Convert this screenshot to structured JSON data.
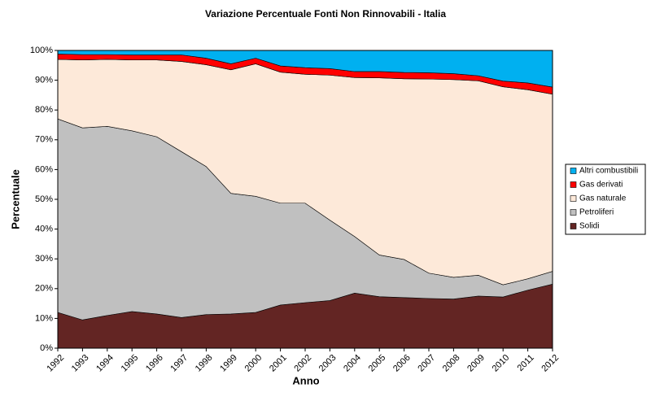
{
  "chart_data": {
    "type": "stacked-area",
    "title": "Variazione Percentuale Fonti Non Rinnovabili - Italia",
    "x_label": "Anno",
    "y_label": "Percentuale",
    "categories": [
      "1992",
      "1993",
      "1994",
      "1995",
      "1996",
      "1997",
      "1998",
      "1999",
      "2000",
      "2001",
      "2002",
      "2003",
      "2004",
      "2005",
      "2006",
      "2007",
      "2008",
      "2009",
      "2010",
      "2011",
      "2012"
    ],
    "ylim": [
      0,
      100
    ],
    "yticks": [
      {
        "value": 0,
        "label": "0%"
      },
      {
        "value": 10,
        "label": "10%"
      },
      {
        "value": 20,
        "label": "20%"
      },
      {
        "value": 30,
        "label": "30%"
      },
      {
        "value": 40,
        "label": "40%"
      },
      {
        "value": 50,
        "label": "50%"
      },
      {
        "value": 60,
        "label": "60%"
      },
      {
        "value": 70,
        "label": "70%"
      },
      {
        "value": 80,
        "label": "80%"
      },
      {
        "value": 90,
        "label": "90%"
      },
      {
        "value": 100,
        "label": "100%"
      }
    ],
    "legend": "right",
    "series": [
      {
        "name": "Solidi",
        "color": "#632523",
        "values": [
          12,
          9.5,
          11,
          12.3,
          11.5,
          10.3,
          11.3,
          11.5,
          12,
          14.5,
          15.3,
          16,
          18.5,
          17.3,
          17,
          16.7,
          16.5,
          17.5,
          17.2,
          19.5,
          21.5
        ]
      },
      {
        "name": "Petroliferi",
        "color": "#c0c0c0",
        "values": [
          65,
          64.5,
          63.5,
          60.7,
          59.5,
          55.7,
          49.7,
          40.5,
          39,
          34.2,
          33.4,
          27,
          19,
          14,
          12.8,
          8.5,
          7.3,
          7,
          4.1,
          3.8,
          4.3
        ]
      },
      {
        "name": "Gas naturale",
        "color": "#fde9d9",
        "values": [
          20,
          22.8,
          22.5,
          23.8,
          25.8,
          30.3,
          34.2,
          41.5,
          44.5,
          44,
          43.3,
          48.7,
          53.4,
          59.5,
          60.7,
          65.2,
          66.4,
          65.3,
          66.5,
          63.5,
          59.5
        ]
      },
      {
        "name": "Gas derivati",
        "color": "#ff0000",
        "values": [
          1.8,
          1.8,
          1.6,
          1.7,
          1.7,
          2.2,
          2.2,
          2,
          1.9,
          2.1,
          2.2,
          2.2,
          2,
          2.1,
          2.1,
          2.1,
          2,
          1.7,
          1.9,
          2.3,
          2.4
        ]
      },
      {
        "name": "Altri combustibili",
        "color": "#00b0f0",
        "values": [
          1.2,
          1.4,
          1.4,
          1.5,
          1.5,
          1.5,
          2.6,
          4.5,
          2.6,
          5.2,
          5.8,
          6.1,
          7.1,
          7.1,
          7.4,
          7.5,
          7.8,
          8.5,
          10.3,
          10.9,
          12.3
        ]
      }
    ]
  }
}
